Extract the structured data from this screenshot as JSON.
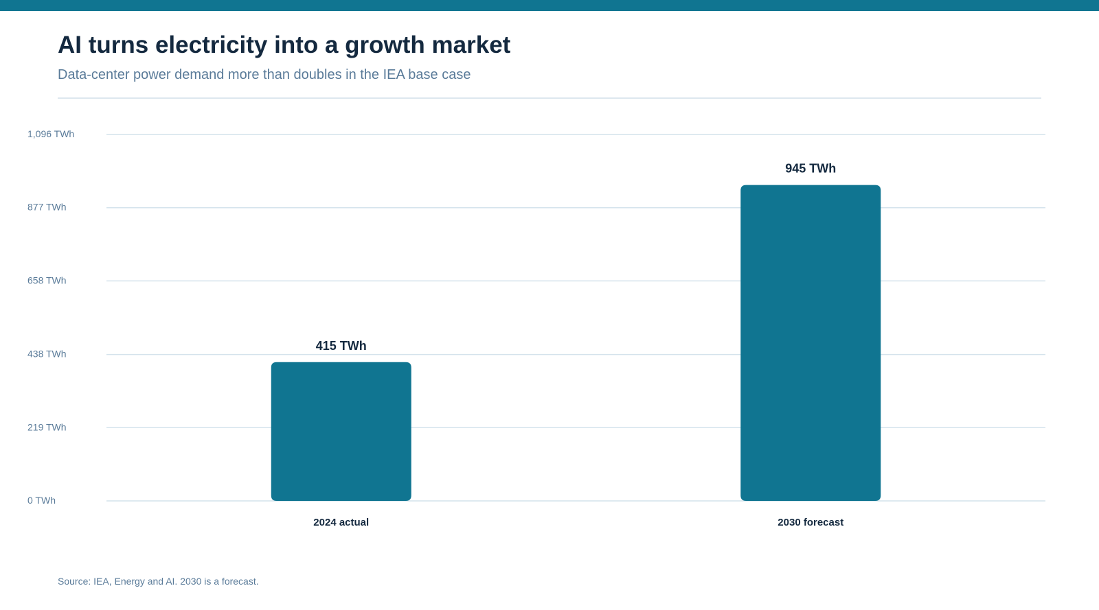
{
  "header": {
    "title": "AI turns electricity into a growth market",
    "subtitle": "Data-center power demand more than doubles in the IEA base case"
  },
  "footer": {
    "source": "Source: IEA, Energy and AI. 2030 is a forecast."
  },
  "colors": {
    "accent": "#107591",
    "title": "#14293f",
    "muted": "#5a7b99",
    "gridline": "#d4e3ec"
  },
  "chart_data": {
    "type": "bar",
    "categories": [
      "2024 actual",
      "2030 forecast"
    ],
    "values": [
      415,
      945
    ],
    "value_labels": [
      "415 TWh",
      "945 TWh"
    ],
    "unit": "TWh",
    "ylim": [
      0,
      1096
    ],
    "y_ticks": [
      0,
      219,
      438,
      658,
      877,
      1096
    ],
    "y_tick_labels": [
      "0 TWh",
      "219 TWh",
      "438 TWh",
      "658 TWh",
      "877 TWh",
      "1,096 TWh"
    ],
    "grid": true,
    "xlabel": "",
    "ylabel": ""
  }
}
